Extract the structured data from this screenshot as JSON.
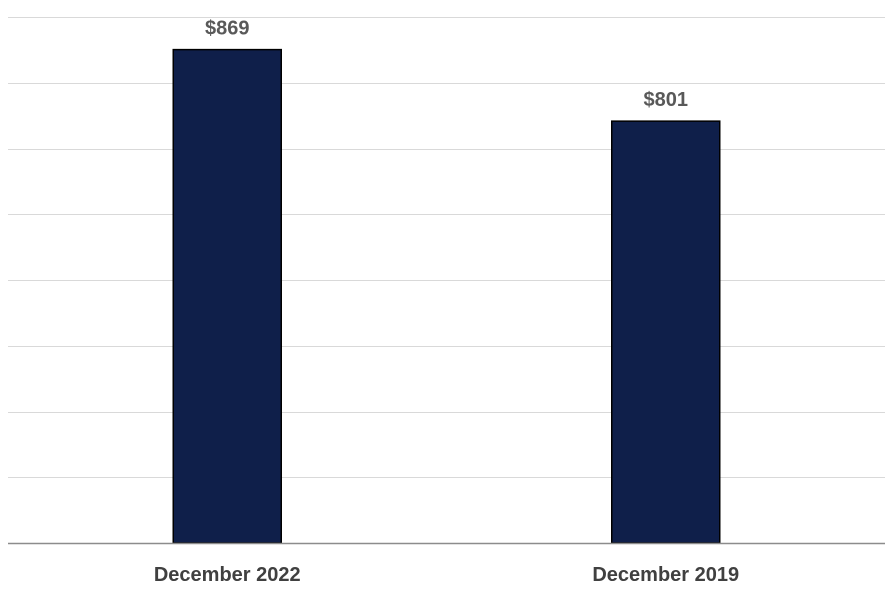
{
  "chart_data": {
    "type": "bar",
    "categories": [
      "December 2022",
      "December 2019"
    ],
    "values": [
      869,
      801
    ],
    "data_labels": [
      "$869",
      "$801"
    ],
    "ylim": [
      400,
      900
    ],
    "grid": true,
    "legend": "none",
    "colors": {
      "bar": "#0f1f4a",
      "bar_outline": "#000000",
      "grid": "#d9d9d9",
      "axis": "#8c8c8c"
    }
  }
}
